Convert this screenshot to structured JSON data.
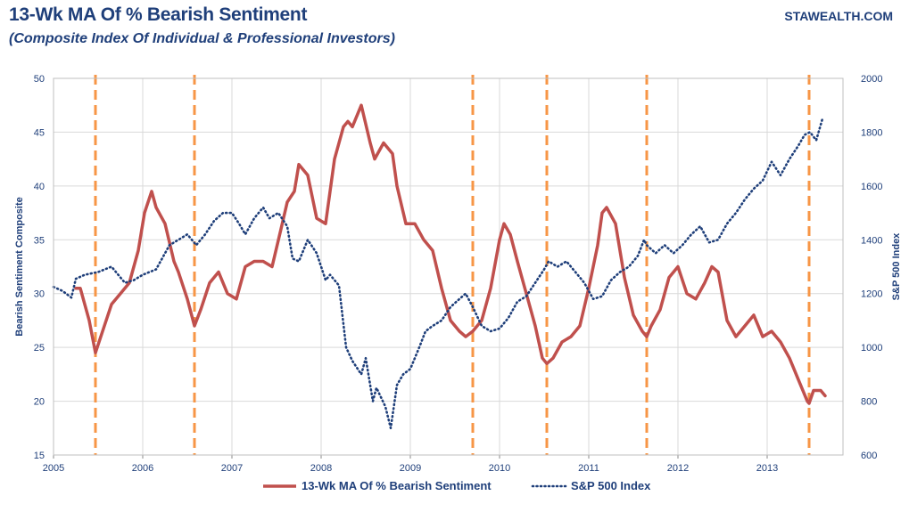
{
  "header": {
    "title": "13-Wk MA Of % Bearish Sentiment",
    "subtitle": "(Composite Index Of Individual & Professional Investors)",
    "source": "STAWEALTH.COM"
  },
  "colors": {
    "sentiment": "#c0504d",
    "sp500": "#1f3f7a",
    "markers": "#f79646",
    "axis": "#1f3f7a",
    "grid": "#d9d9d9"
  },
  "chart_data": {
    "type": "line",
    "title": "13-Wk MA Of % Bearish Sentiment",
    "subtitle": "(Composite Index Of Individual & Professional Investors)",
    "xlabel": "",
    "ylabel": "Bearish Sentiment Composite",
    "y2label": "S&P 500 Index",
    "xlim": [
      2005,
      2013.85
    ],
    "ylim": [
      15,
      50
    ],
    "y2lim": [
      600,
      2000
    ],
    "xticks": [
      "2005",
      "2006",
      "2007",
      "2008",
      "2009",
      "2010",
      "2011",
      "2012",
      "2013"
    ],
    "yticks": [
      "15",
      "20",
      "25",
      "30",
      "35",
      "40",
      "45",
      "50"
    ],
    "y2ticks": [
      "600",
      "800",
      "1000",
      "1200",
      "1400",
      "1600",
      "1800",
      "2000"
    ],
    "grid": true,
    "legend_position": "bottom",
    "vertical_markers": [
      2005.47,
      2006.58,
      2009.7,
      2010.53,
      2011.65,
      2013.47
    ],
    "series": [
      {
        "name": "13-Wk MA Of % Bearish Sentiment",
        "axis": "left",
        "style": "solid",
        "x": [
          2005.25,
          2005.3,
          2005.4,
          2005.47,
          2005.55,
          2005.65,
          2005.75,
          2005.85,
          2005.95,
          2006.02,
          2006.1,
          2006.15,
          2006.25,
          2006.35,
          2006.4,
          2006.5,
          2006.58,
          2006.65,
          2006.75,
          2006.85,
          2006.95,
          2007.05,
          2007.15,
          2007.25,
          2007.35,
          2007.45,
          2007.55,
          2007.62,
          2007.7,
          2007.75,
          2007.85,
          2007.95,
          2008.05,
          2008.15,
          2008.25,
          2008.3,
          2008.35,
          2008.45,
          2008.55,
          2008.6,
          2008.7,
          2008.8,
          2008.85,
          2008.95,
          2009.05,
          2009.15,
          2009.25,
          2009.35,
          2009.45,
          2009.55,
          2009.62,
          2009.7,
          2009.8,
          2009.9,
          2010.0,
          2010.05,
          2010.12,
          2010.2,
          2010.3,
          2010.4,
          2010.48,
          2010.53,
          2010.6,
          2010.7,
          2010.8,
          2010.9,
          2011.0,
          2011.1,
          2011.15,
          2011.2,
          2011.3,
          2011.4,
          2011.5,
          2011.6,
          2011.65,
          2011.7,
          2011.8,
          2011.9,
          2012.0,
          2012.1,
          2012.2,
          2012.3,
          2012.38,
          2012.45,
          2012.55,
          2012.65,
          2012.75,
          2012.85,
          2012.95,
          2013.05,
          2013.15,
          2013.25,
          2013.35,
          2013.45,
          2013.47,
          2013.52,
          2013.6,
          2013.65
        ],
        "y": [
          30.5,
          30.5,
          27.5,
          24.5,
          26.5,
          29.0,
          30.0,
          31.0,
          34.0,
          37.5,
          39.5,
          38.0,
          36.5,
          33.0,
          32.0,
          29.5,
          27.0,
          28.5,
          31.0,
          32.0,
          30.0,
          29.5,
          32.5,
          33.0,
          33.0,
          32.5,
          36.0,
          38.5,
          39.5,
          42.0,
          41.0,
          37.0,
          36.5,
          42.5,
          45.5,
          46.0,
          45.5,
          47.5,
          44.0,
          42.5,
          44.0,
          43.0,
          40.0,
          36.5,
          36.5,
          35.0,
          34.0,
          30.5,
          27.5,
          26.5,
          26.0,
          26.5,
          27.5,
          30.5,
          35.0,
          36.5,
          35.5,
          33.0,
          30.0,
          27.0,
          24.0,
          23.5,
          24.0,
          25.5,
          26.0,
          27.0,
          30.5,
          34.5,
          37.5,
          38.0,
          36.5,
          31.5,
          28.0,
          26.5,
          26.0,
          27.0,
          28.5,
          31.5,
          32.5,
          30.0,
          29.5,
          31.0,
          32.5,
          32.0,
          27.5,
          26.0,
          27.0,
          28.0,
          26.0,
          26.5,
          25.5,
          24.0,
          22.0,
          20.0,
          19.8,
          21.0,
          21.0,
          20.5
        ]
      },
      {
        "name": "S&P 500 Index",
        "axis": "right",
        "style": "dotted",
        "x": [
          2005.0,
          2005.1,
          2005.2,
          2005.25,
          2005.35,
          2005.5,
          2005.65,
          2005.8,
          2005.9,
          2006.0,
          2006.15,
          2006.3,
          2006.4,
          2006.5,
          2006.6,
          2006.7,
          2006.8,
          2006.9,
          2007.0,
          2007.08,
          2007.15,
          2007.25,
          2007.35,
          2007.42,
          2007.52,
          2007.62,
          2007.68,
          2007.75,
          2007.85,
          2007.95,
          2008.05,
          2008.1,
          2008.2,
          2008.28,
          2008.35,
          2008.45,
          2008.5,
          2008.58,
          2008.62,
          2008.72,
          2008.78,
          2008.85,
          2008.92,
          2009.0,
          2009.1,
          2009.17,
          2009.25,
          2009.35,
          2009.45,
          2009.55,
          2009.62,
          2009.7,
          2009.8,
          2009.9,
          2010.0,
          2010.1,
          2010.2,
          2010.3,
          2010.4,
          2010.5,
          2010.55,
          2010.65,
          2010.75,
          2010.85,
          2010.95,
          2011.05,
          2011.15,
          2011.25,
          2011.35,
          2011.45,
          2011.55,
          2011.62,
          2011.65,
          2011.75,
          2011.85,
          2011.95,
          2012.05,
          2012.15,
          2012.25,
          2012.35,
          2012.45,
          2012.55,
          2012.65,
          2012.75,
          2012.85,
          2012.95,
          2013.05,
          2013.15,
          2013.25,
          2013.35,
          2013.42,
          2013.48,
          2013.55,
          2013.62
        ],
        "y": [
          1225,
          1210,
          1185,
          1255,
          1270,
          1280,
          1300,
          1240,
          1250,
          1270,
          1290,
          1380,
          1400,
          1420,
          1380,
          1420,
          1470,
          1500,
          1500,
          1460,
          1420,
          1480,
          1520,
          1480,
          1500,
          1450,
          1330,
          1320,
          1400,
          1350,
          1250,
          1270,
          1230,
          1000,
          950,
          900,
          960,
          800,
          850,
          780,
          700,
          860,
          900,
          920,
          1000,
          1060,
          1080,
          1100,
          1150,
          1180,
          1200,
          1150,
          1080,
          1060,
          1070,
          1110,
          1170,
          1190,
          1240,
          1290,
          1320,
          1300,
          1320,
          1280,
          1240,
          1180,
          1190,
          1250,
          1280,
          1300,
          1340,
          1400,
          1380,
          1350,
          1380,
          1350,
          1380,
          1420,
          1450,
          1390,
          1400,
          1460,
          1500,
          1550,
          1590,
          1620,
          1690,
          1640,
          1700,
          1750,
          1790,
          1800,
          1770,
          1850
        ]
      }
    ]
  }
}
